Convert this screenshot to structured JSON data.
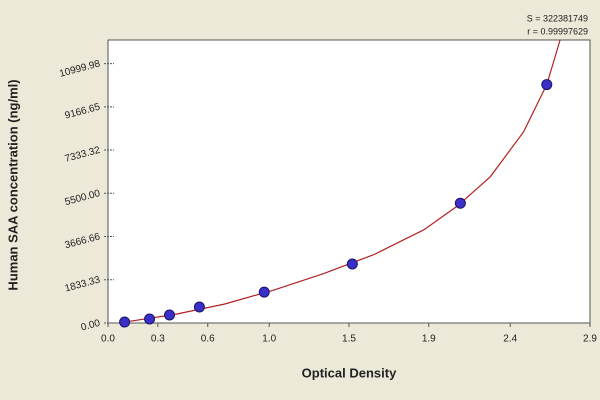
{
  "chart_data": {
    "type": "scatter",
    "annotations": [
      "S = 322381749",
      "r = 0.99997629"
    ],
    "xlabel": "Optical Density",
    "ylabel": "Human SAA concentration (ng/ml)",
    "x": [
      0.1,
      0.25,
      0.37,
      0.55,
      0.94,
      1.47,
      2.12,
      2.64
    ],
    "values": [
      40,
      170,
      340,
      680,
      1310,
      2500,
      5080,
      10110
    ],
    "color": "#3a2fc8",
    "fit": {
      "color": "#b22222",
      "x": [
        0.1,
        0.4,
        0.7,
        1.0,
        1.3,
        1.6,
        1.9,
        2.1,
        2.3,
        2.5,
        2.64,
        2.72
      ],
      "values": [
        40,
        360,
        800,
        1400,
        2100,
        2900,
        3950,
        4950,
        6200,
        8100,
        10110,
        12000
      ]
    },
    "xlim": [
      0,
      2.9
    ],
    "ylim": [
      0,
      12000
    ],
    "xticks": [
      {
        "value": 0,
        "label": "0.0"
      },
      0.3,
      0.6,
      {
        "value": 0.97,
        "label": "1.0"
      },
      {
        "value": 1.45,
        "label": "1.5"
      },
      {
        "value": 1.93,
        "label": "1.9"
      },
      {
        "value": 2.42,
        "label": "2.4"
      },
      2.9
    ],
    "yticks": [
      {
        "value": 0,
        "label": "0.00"
      },
      1833.33,
      3666.66,
      {
        "value": 5500,
        "label": "5500.00"
      },
      7333.32,
      9166.65,
      10999.98
    ],
    "grid": false
  }
}
